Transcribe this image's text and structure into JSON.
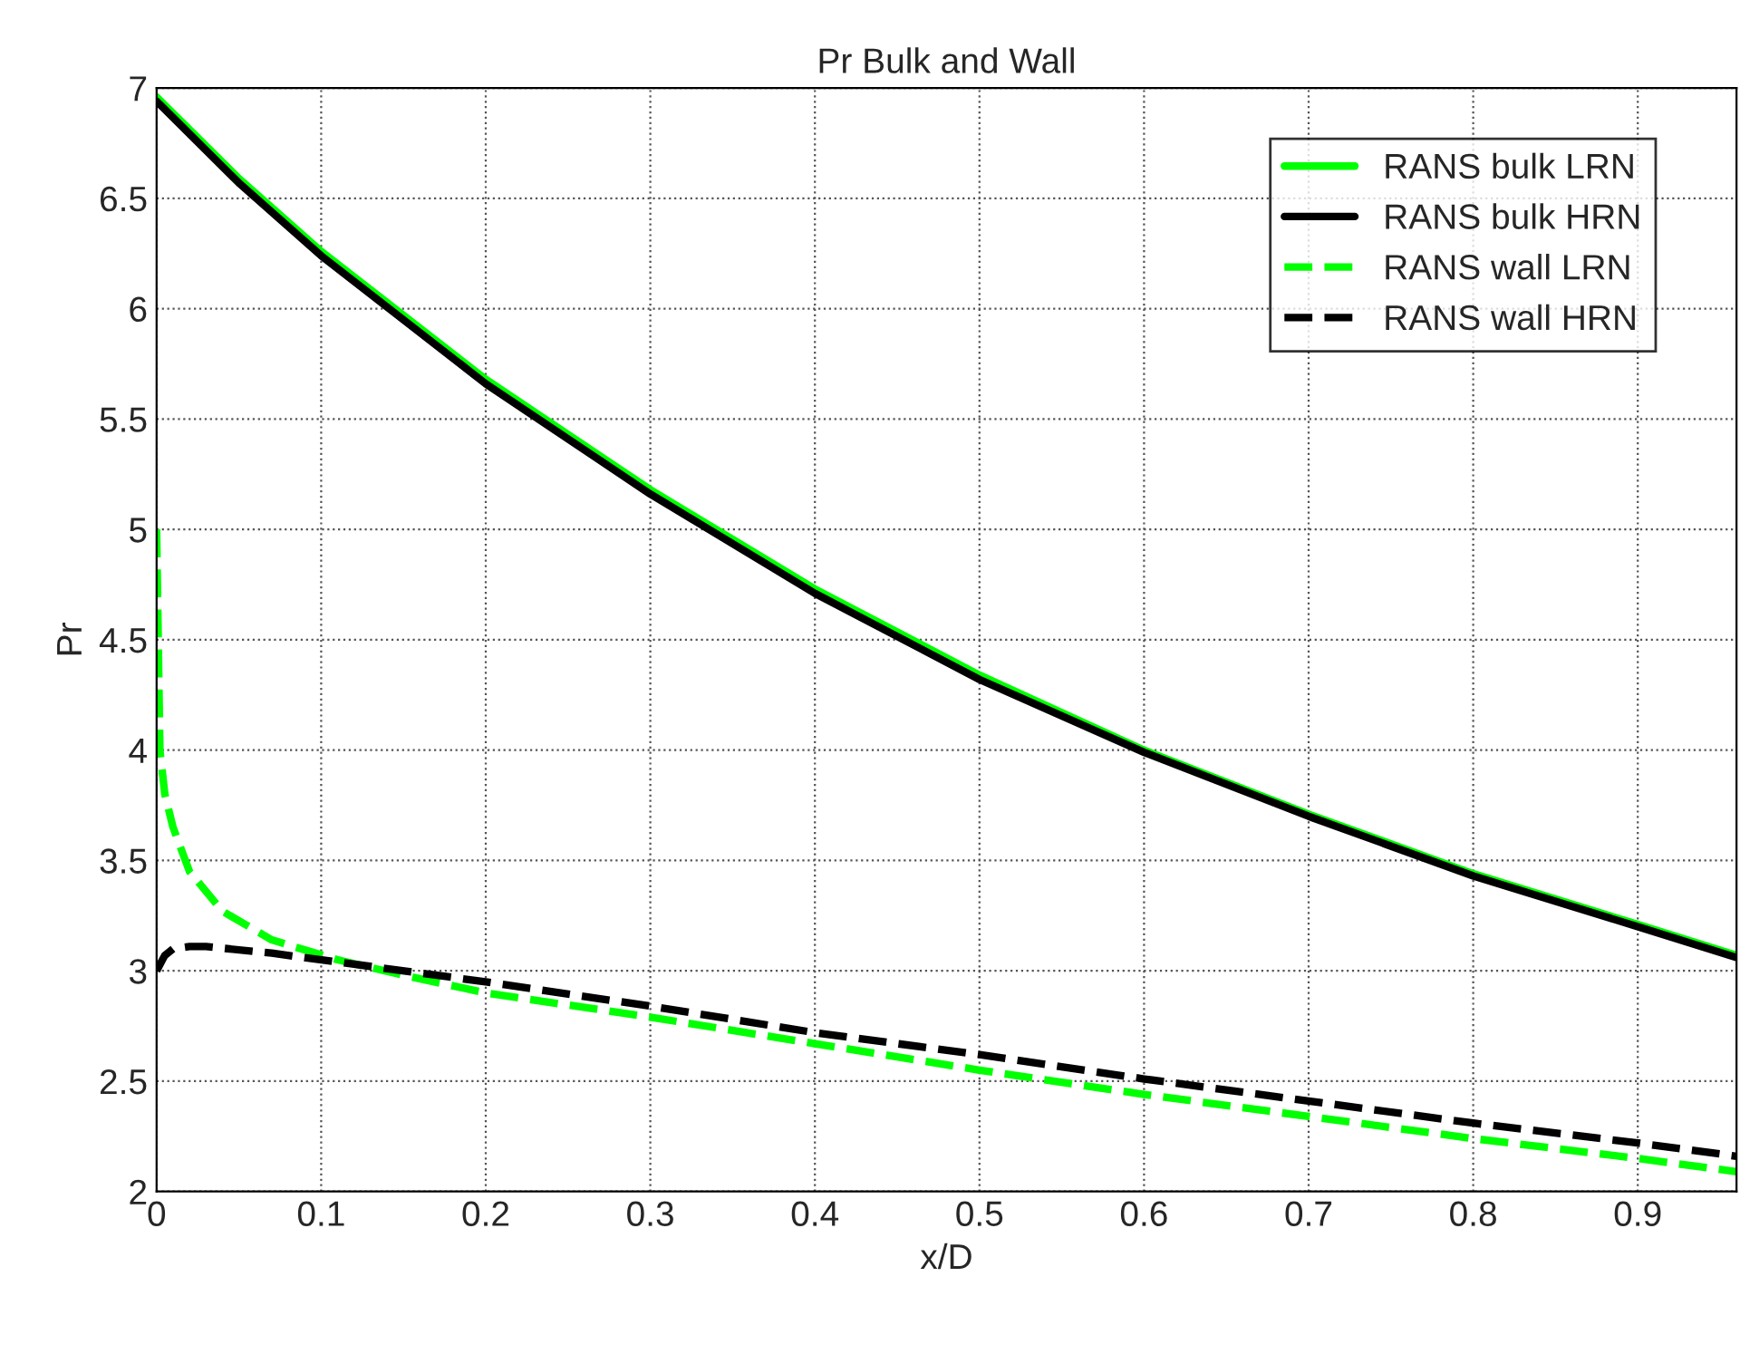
{
  "chart_data": {
    "type": "line",
    "title": "Pr Bulk and Wall",
    "xlabel": "x/D",
    "ylabel": "Pr",
    "xlim": [
      0,
      0.96
    ],
    "xticks": [
      0,
      0.1,
      0.2,
      0.3,
      0.4,
      0.5,
      0.6,
      0.7,
      0.8,
      0.9
    ],
    "ylim": [
      2,
      7
    ],
    "yticks": [
      2,
      2.5,
      3,
      3.5,
      4,
      4.5,
      5,
      5.5,
      6,
      6.5,
      7
    ],
    "grid": true,
    "legend": "top right",
    "series": [
      {
        "name": "RANS bulk LRN",
        "color": "#00ff00",
        "line_style": "solid",
        "x": [
          0,
          0.05,
          0.1,
          0.2,
          0.3,
          0.4,
          0.5,
          0.6,
          0.7,
          0.8,
          0.9,
          0.96
        ],
        "values": [
          6.96,
          6.59,
          6.26,
          5.68,
          5.18,
          4.73,
          4.34,
          4.0,
          3.71,
          3.44,
          3.21,
          3.07
        ]
      },
      {
        "name": "RANS bulk HRN",
        "color": "#000000",
        "line_style": "solid",
        "x": [
          0,
          0.05,
          0.1,
          0.2,
          0.3,
          0.4,
          0.5,
          0.6,
          0.7,
          0.8,
          0.9,
          0.96
        ],
        "values": [
          6.94,
          6.57,
          6.24,
          5.66,
          5.16,
          4.71,
          4.32,
          3.99,
          3.7,
          3.43,
          3.2,
          3.06
        ]
      },
      {
        "name": "RANS wall LRN",
        "color": "#00ff00",
        "line_style": "dashed",
        "x": [
          0,
          0.001,
          0.002,
          0.005,
          0.01,
          0.02,
          0.04,
          0.07,
          0.11,
          0.15,
          0.2,
          0.3,
          0.4,
          0.5,
          0.6,
          0.7,
          0.8,
          0.9,
          0.96
        ],
        "values": [
          5.0,
          4.5,
          4.0,
          3.8,
          3.65,
          3.45,
          3.27,
          3.14,
          3.05,
          2.98,
          2.9,
          2.79,
          2.67,
          2.55,
          2.44,
          2.34,
          2.24,
          2.15,
          2.09
        ]
      },
      {
        "name": "RANS wall HRN",
        "color": "#000000",
        "line_style": "dashed",
        "x": [
          0,
          0.005,
          0.01,
          0.02,
          0.03,
          0.07,
          0.12,
          0.2,
          0.3,
          0.4,
          0.5,
          0.6,
          0.7,
          0.8,
          0.9,
          0.96
        ],
        "values": [
          3.0,
          3.07,
          3.1,
          3.11,
          3.11,
          3.08,
          3.03,
          2.95,
          2.84,
          2.72,
          2.62,
          2.51,
          2.41,
          2.31,
          2.22,
          2.16
        ]
      }
    ]
  }
}
